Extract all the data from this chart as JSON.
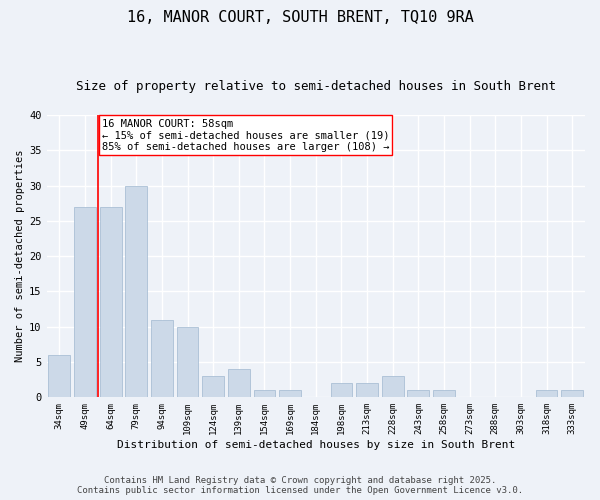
{
  "title": "16, MANOR COURT, SOUTH BRENT, TQ10 9RA",
  "subtitle": "Size of property relative to semi-detached houses in South Brent",
  "xlabel": "Distribution of semi-detached houses by size in South Brent",
  "ylabel": "Number of semi-detached properties",
  "categories": [
    "34sqm",
    "49sqm",
    "64sqm",
    "79sqm",
    "94sqm",
    "109sqm",
    "124sqm",
    "139sqm",
    "154sqm",
    "169sqm",
    "184sqm",
    "198sqm",
    "213sqm",
    "228sqm",
    "243sqm",
    "258sqm",
    "273sqm",
    "288sqm",
    "303sqm",
    "318sqm",
    "333sqm"
  ],
  "values": [
    6,
    27,
    27,
    30,
    11,
    10,
    3,
    4,
    1,
    1,
    0,
    2,
    2,
    3,
    1,
    1,
    0,
    0,
    0,
    1,
    1
  ],
  "bar_color": "#ccd9e8",
  "bar_edge_color": "#a0b8d0",
  "vline_x": 1.5,
  "vline_color": "red",
  "annotation_text": "16 MANOR COURT: 58sqm\n← 15% of semi-detached houses are smaller (19)\n85% of semi-detached houses are larger (108) →",
  "annotation_box_color": "white",
  "annotation_box_edge_color": "red",
  "ylim": [
    0,
    40
  ],
  "yticks": [
    0,
    5,
    10,
    15,
    20,
    25,
    30,
    35,
    40
  ],
  "footer": "Contains HM Land Registry data © Crown copyright and database right 2025.\nContains public sector information licensed under the Open Government Licence v3.0.",
  "bg_color": "#eef2f8",
  "plot_bg_color": "#eef2f8",
  "grid_color": "#ffffff",
  "title_fontsize": 11,
  "subtitle_fontsize": 9,
  "annotation_fontsize": 7.5,
  "footer_fontsize": 6.5
}
